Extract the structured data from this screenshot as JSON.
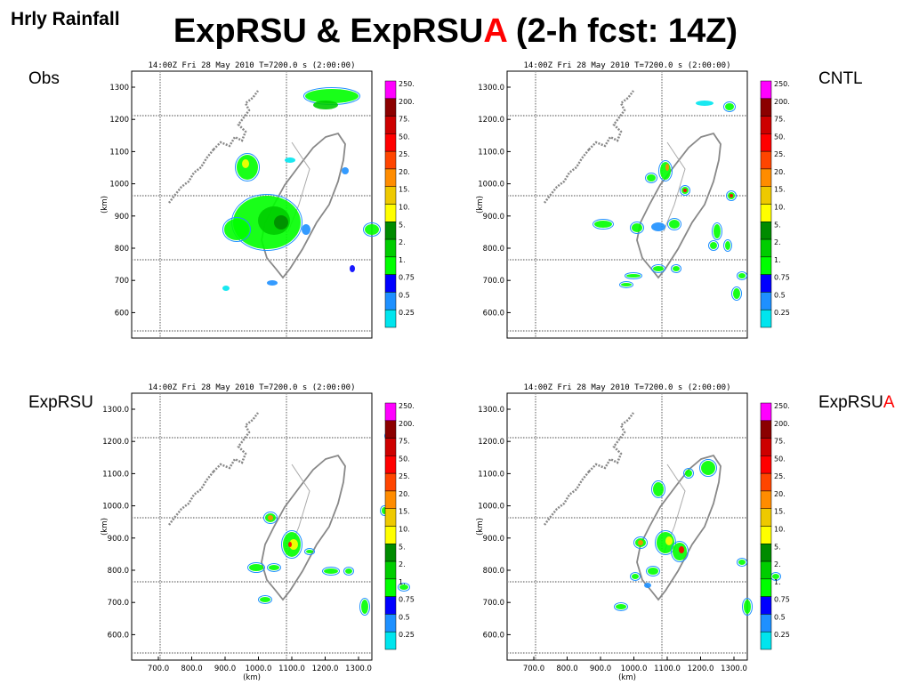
{
  "header": {
    "corner_label": "Hrly Rainfall",
    "title_main": "ExpRSU & ExpRSU",
    "title_accent": "A",
    "title_tail": " (2-h fcst: 14Z)"
  },
  "colors": {
    "accent": "#ff0000",
    "colorbar": [
      "#00e5ee",
      "#1e90ff",
      "#0000ff",
      "#00ff00",
      "#00cd00",
      "#008b00",
      "#ffff00",
      "#eec900",
      "#ff8c00",
      "#ff4500",
      "#ff0000",
      "#cd0000",
      "#8b0000",
      "#ff00ff"
    ]
  },
  "plot_title": "14:00Z Fri 28 May 2010    T=7200.0 s (2:00:00)",
  "colorbar_labels": [
    "250.",
    "200.",
    "75.",
    "50.",
    "25.",
    "20.",
    "15.",
    "10.",
    "5.",
    "2.",
    "1.",
    "0.75",
    "0.5",
    "0.25"
  ],
  "y_ticks": [
    "1300.0",
    "1200.0",
    "1100.0",
    "1000.0",
    "900.0",
    "800.0",
    "700.0",
    "600.0"
  ],
  "y_ticks_obs": [
    "1300",
    "1200",
    "1100",
    "1000",
    "900",
    "800",
    "700",
    "600"
  ],
  "x_ticks": [
    "700.0",
    "800.0",
    "900.0",
    "1000.0",
    "1100.0",
    "1200.0",
    "1300.0"
  ],
  "axis_unit": "(km)",
  "panels": [
    {
      "label": "Obs",
      "label_accent": ""
    },
    {
      "label": "CNTL",
      "label_accent": ""
    },
    {
      "label": "ExpRSU",
      "label_accent": ""
    },
    {
      "label": "ExpRSU",
      "label_accent": "A"
    }
  ]
}
